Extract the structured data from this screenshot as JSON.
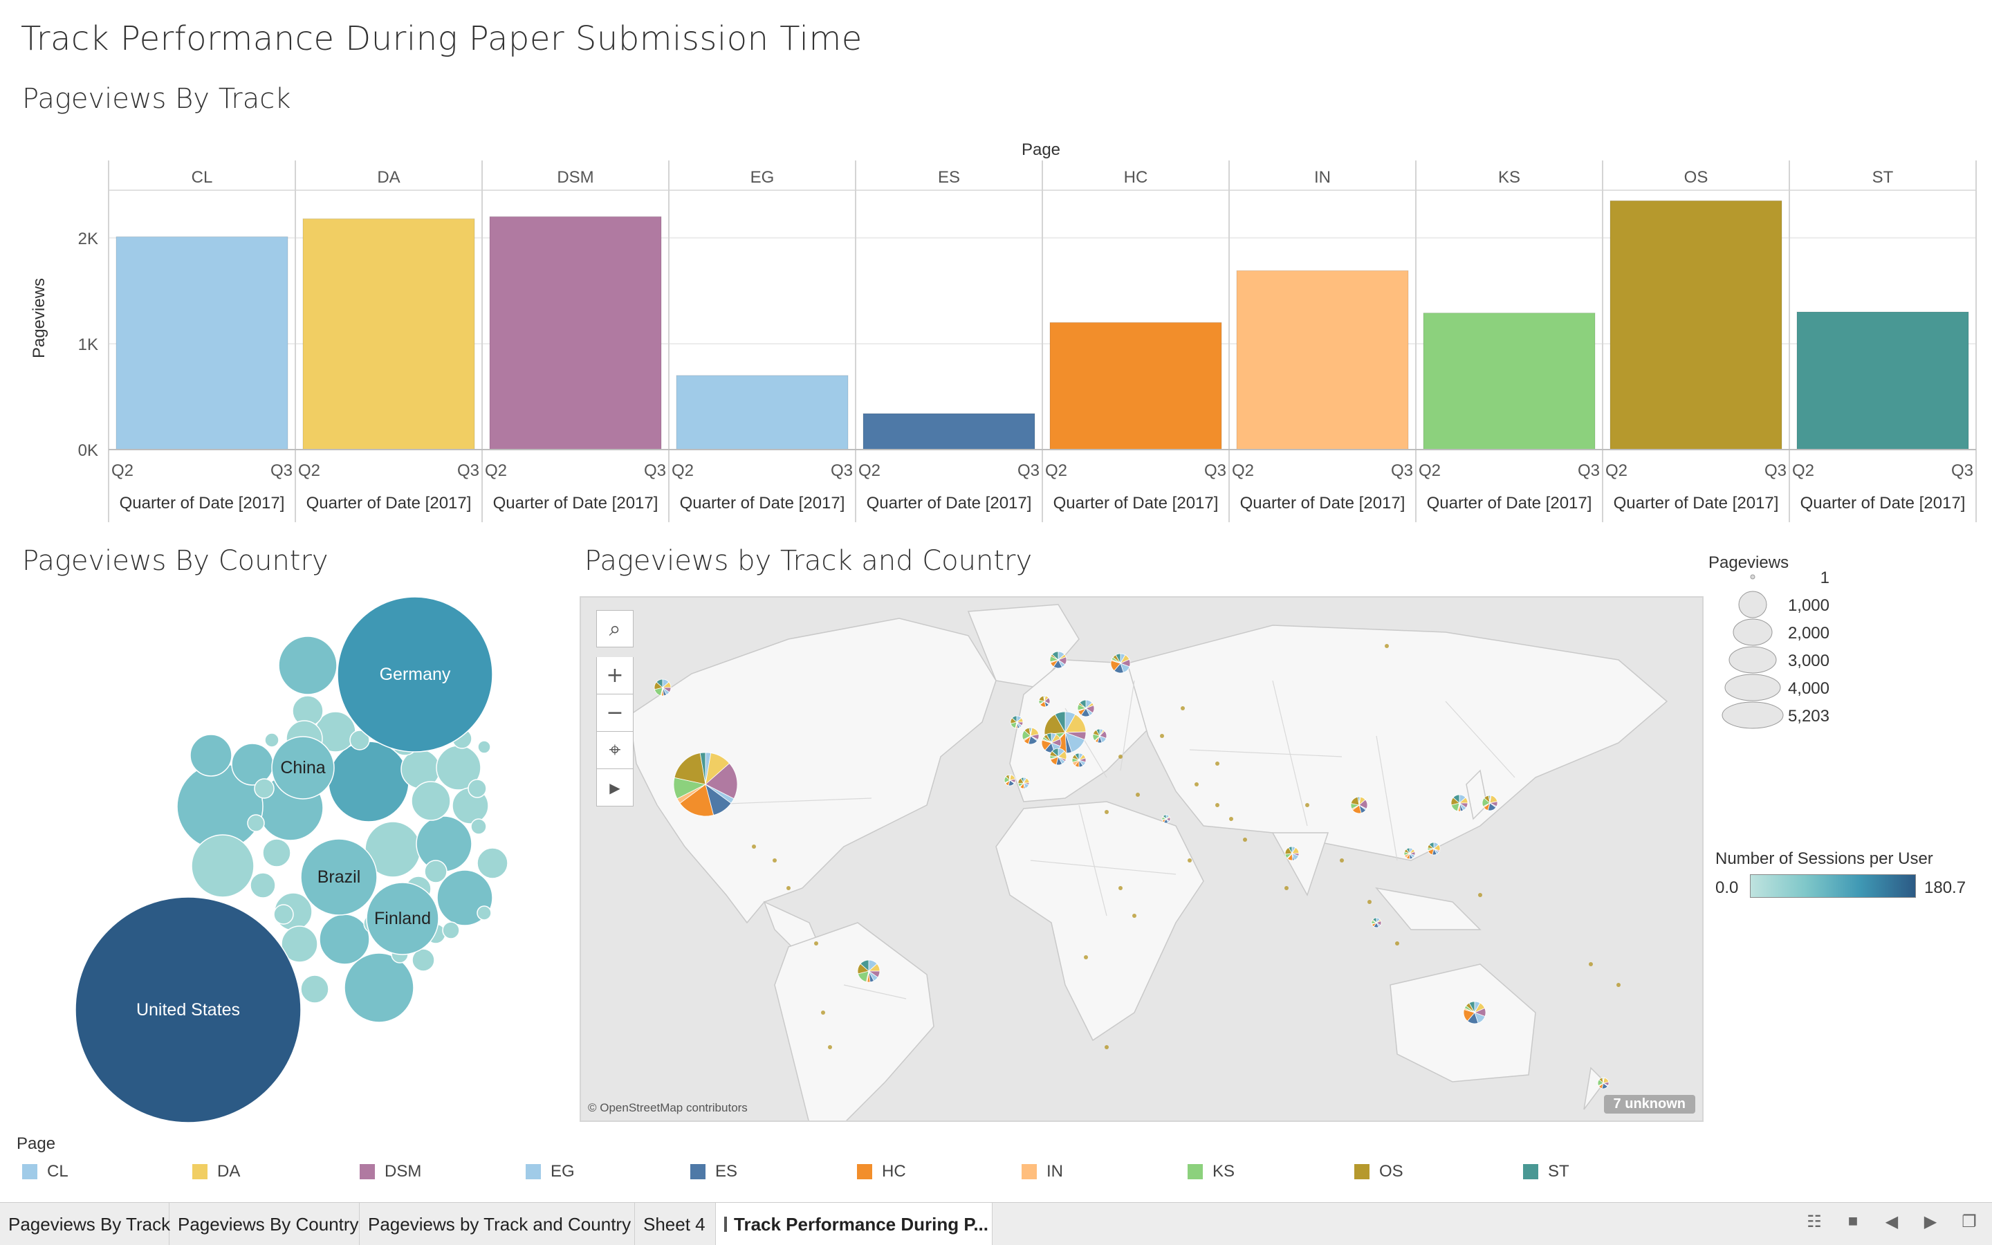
{
  "dashboard_title": "Track Performance During Paper Submission Time",
  "sections": {
    "bar": "Pageviews By Track",
    "country": "Pageviews By Country",
    "map": "Pageviews by Track and Country"
  },
  "colors": {
    "CL": "#a0cbe8",
    "DA": "#f1ce63",
    "DSM": "#b07aa1",
    "EG": "#a0cbe8",
    "ES": "#4e79a7",
    "HC": "#f28e2b",
    "IN": "#ffbe7d",
    "KS": "#8cd17d",
    "OS": "#b6992d",
    "ST": "#499894"
  },
  "chart_data": [
    {
      "type": "bar",
      "column_header": "Page",
      "categories": [
        "CL",
        "DA",
        "DSM",
        "EG",
        "ES",
        "HC",
        "IN",
        "KS",
        "OS",
        "ST"
      ],
      "values": [
        2010,
        2180,
        2200,
        700,
        340,
        1200,
        1690,
        1290,
        2350,
        1300
      ],
      "ylabel": "Pageviews",
      "y_ticks": [
        "0K",
        "1K",
        "2K"
      ],
      "ylim": [
        0,
        2450
      ],
      "x_ticks": [
        "Q2",
        "Q3"
      ],
      "xlabel": "Quarter of Date [2017]",
      "grid": true
    },
    {
      "type": "bubble",
      "labeled_bubbles": [
        {
          "label": "United States",
          "color": "#2c5a85"
        },
        {
          "label": "Germany",
          "color": "#3f98b4"
        },
        {
          "label": "China",
          "color": "#79c1c9"
        },
        {
          "label": "Brazil",
          "color": "#79c1c9"
        },
        {
          "label": "Finland",
          "color": "#79c1c9"
        }
      ]
    },
    {
      "type": "map",
      "credit": "© OpenStreetMap contributors",
      "unknown_label": "7 unknown",
      "size_legend": {
        "title": "Pageviews",
        "values": [
          "1",
          "1,000",
          "2,000",
          "3,000",
          "4,000",
          "5,203"
        ]
      },
      "color_legend": {
        "title": "Number of Sessions per User",
        "min": "0.0",
        "max": "180.7"
      }
    }
  ],
  "page_legend": {
    "title": "Page",
    "items": [
      "CL",
      "DA",
      "DSM",
      "EG",
      "ES",
      "HC",
      "IN",
      "KS",
      "OS",
      "ST"
    ]
  },
  "tabs": [
    {
      "label": "Pageviews By Track"
    },
    {
      "label": "Pageviews By Country"
    },
    {
      "label": "Pageviews by Track and Country"
    },
    {
      "label": "Sheet 4"
    },
    {
      "label": "Track Performance During P..."
    }
  ]
}
